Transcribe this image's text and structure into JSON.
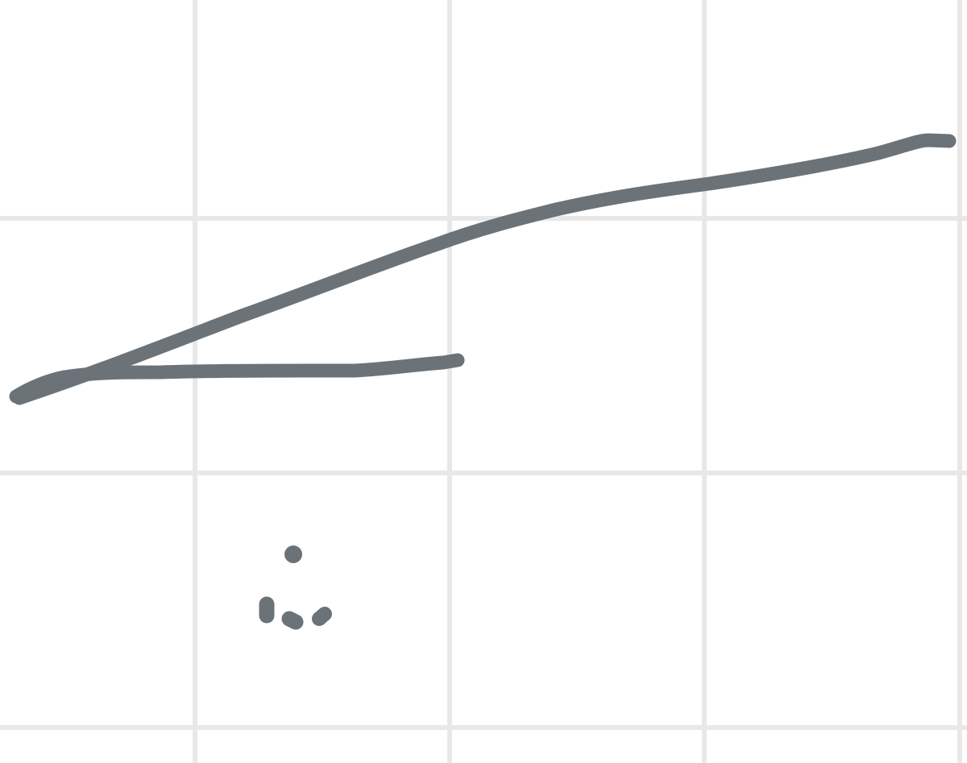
{
  "canvas": {
    "background_color": "#ffffff",
    "grid_color": "#e8e8e8",
    "ink_color": "#6b7379",
    "grid": true
  },
  "strokes": [
    {
      "name": "long-stroke"
    },
    {
      "name": "short-stroke"
    },
    {
      "name": "dot-top"
    },
    {
      "name": "mark-left"
    },
    {
      "name": "mark-middle"
    },
    {
      "name": "mark-right"
    }
  ]
}
